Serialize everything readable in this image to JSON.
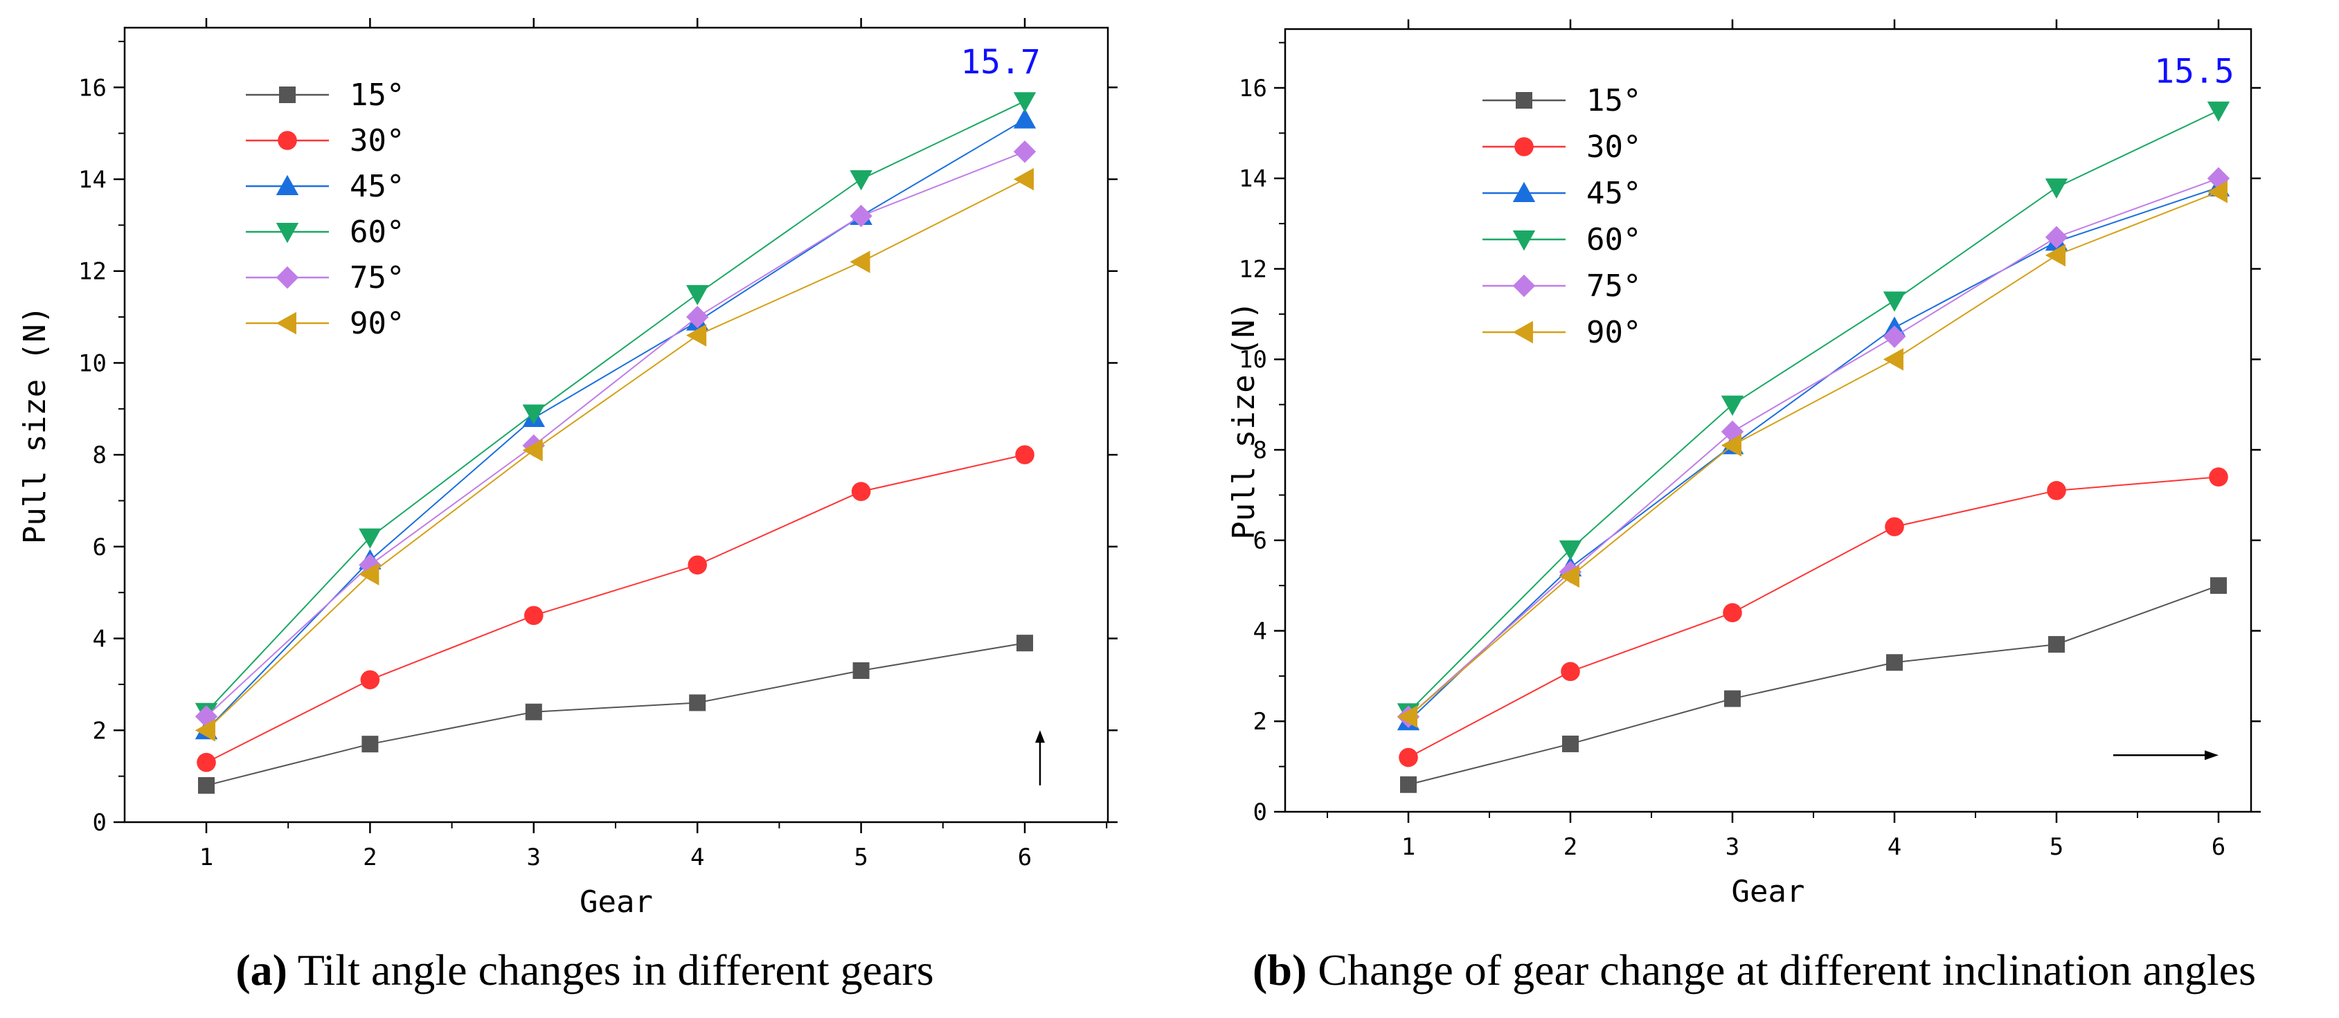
{
  "chart_data": [
    {
      "type": "line",
      "panel_label": "(a)",
      "caption": "Tilt angle changes in different gears",
      "xlabel": "Gear",
      "ylabel": "Pull size (N)",
      "categories": [
        1,
        2,
        3,
        4,
        5,
        6
      ],
      "x_ticks": [
        "1",
        "2",
        "3",
        "4",
        "5",
        "6"
      ],
      "ylim": [
        0,
        17.3
      ],
      "y_ticks": [
        "0",
        "2",
        "4",
        "6",
        "8",
        "10",
        "12",
        "14",
        "16"
      ],
      "y_tick_values": [
        0,
        2,
        4,
        6,
        8,
        10,
        12,
        14,
        16
      ],
      "legend_position": "top-left",
      "annotation": {
        "text": "15.7",
        "x": 6,
        "y": 15.7,
        "color": "#1010ff"
      },
      "arrow": "up",
      "series": [
        {
          "name": "15°",
          "marker": "square",
          "color": "#555555",
          "values": [
            0.8,
            1.7,
            2.4,
            2.6,
            3.3,
            3.9
          ]
        },
        {
          "name": "30°",
          "marker": "circle",
          "color": "#ff3333",
          "values": [
            1.3,
            3.1,
            4.5,
            5.6,
            7.2,
            8.0
          ]
        },
        {
          "name": "45°",
          "marker": "triangle-up",
          "color": "#1a6fdf",
          "values": [
            2.0,
            5.7,
            8.8,
            10.9,
            13.2,
            15.3
          ]
        },
        {
          "name": "60°",
          "marker": "triangle-down",
          "color": "#1aa864",
          "values": [
            2.4,
            6.2,
            8.9,
            11.5,
            14.0,
            15.7
          ]
        },
        {
          "name": "75°",
          "marker": "diamond",
          "color": "#c07de8",
          "values": [
            2.3,
            5.6,
            8.2,
            11.0,
            13.2,
            14.6
          ]
        },
        {
          "name": "90°",
          "marker": "triangle-left",
          "color": "#d4a017",
          "values": [
            2.0,
            5.4,
            8.1,
            10.6,
            12.2,
            14.0
          ]
        }
      ]
    },
    {
      "type": "line",
      "panel_label": "(b)",
      "caption": "Change of gear change at different inclination angles",
      "xlabel": "Gear",
      "ylabel": "Pull size (N)",
      "categories": [
        1,
        2,
        3,
        4,
        5,
        6
      ],
      "x_ticks": [
        "1",
        "2",
        "3",
        "4",
        "5",
        "6"
      ],
      "ylim": [
        0,
        17.3
      ],
      "y_ticks": [
        "0",
        "2",
        "4",
        "6",
        "8",
        "10",
        "12",
        "14",
        "16"
      ],
      "y_tick_values": [
        0,
        2,
        4,
        6,
        8,
        10,
        12,
        14,
        16
      ],
      "legend_position": "top-left",
      "annotation": {
        "text": "15.5",
        "x": 6,
        "y": 15.5,
        "color": "#1010ff"
      },
      "arrow": "right",
      "series": [
        {
          "name": "15°",
          "marker": "square",
          "color": "#555555",
          "values": [
            0.6,
            1.5,
            2.5,
            3.3,
            3.7,
            5.0
          ]
        },
        {
          "name": "30°",
          "marker": "circle",
          "color": "#ff3333",
          "values": [
            1.2,
            3.1,
            4.4,
            6.3,
            7.1,
            7.4
          ]
        },
        {
          "name": "45°",
          "marker": "triangle-up",
          "color": "#1a6fdf",
          "values": [
            2.0,
            5.4,
            8.1,
            10.7,
            12.6,
            13.8
          ]
        },
        {
          "name": "60°",
          "marker": "triangle-down",
          "color": "#1aa864",
          "values": [
            2.2,
            5.8,
            9.0,
            11.3,
            13.8,
            15.5
          ]
        },
        {
          "name": "75°",
          "marker": "diamond",
          "color": "#c07de8",
          "values": [
            2.1,
            5.3,
            8.4,
            10.5,
            12.7,
            14.0
          ]
        },
        {
          "name": "90°",
          "marker": "triangle-left",
          "color": "#d4a017",
          "values": [
            2.1,
            5.2,
            8.1,
            10.0,
            12.3,
            13.7
          ]
        }
      ]
    }
  ]
}
